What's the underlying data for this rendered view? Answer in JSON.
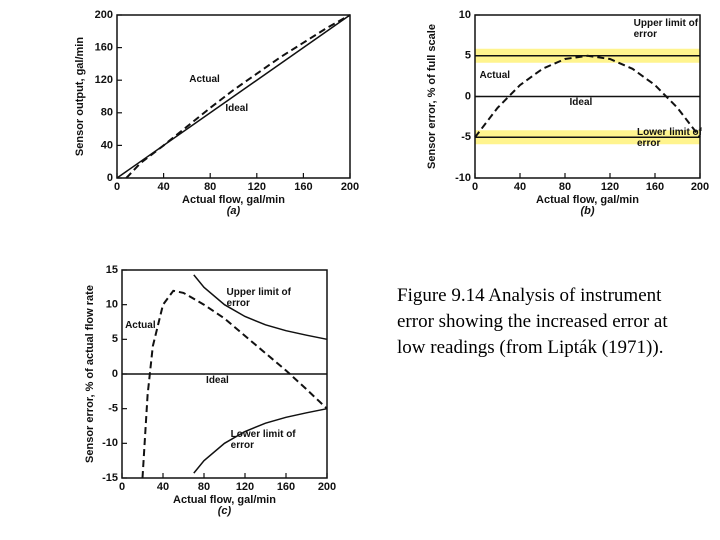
{
  "chart_data": [
    {
      "type": "line",
      "panel": "(a)",
      "xlabel": "Actual flow, gal/min",
      "ylabel": "Sensor output, gal/min",
      "xlim": [
        0,
        200
      ],
      "xticks": [
        0,
        40,
        80,
        120,
        160,
        200
      ],
      "ylim": [
        0,
        200
      ],
      "yticks": [
        0,
        40,
        80,
        120,
        160,
        200
      ],
      "series": [
        {
          "name": "Actual",
          "color": "#111111",
          "dash": true,
          "x": [
            8,
            20,
            40,
            60,
            80,
            100,
            120,
            140,
            160,
            180,
            200
          ],
          "values": [
            0,
            18,
            40,
            63,
            86,
            108,
            128,
            148,
            166,
            184,
            200
          ]
        },
        {
          "name": "Ideal",
          "color": "#111111",
          "dash": false,
          "x": [
            0,
            200
          ],
          "values": [
            0,
            200
          ]
        }
      ]
    },
    {
      "type": "line",
      "panel": "(b)",
      "xlabel": "Actual flow, gal/min",
      "ylabel": "Sensor error, % of full scale",
      "xlim": [
        0,
        200
      ],
      "xticks": [
        0,
        40,
        80,
        120,
        160,
        200
      ],
      "ylim": [
        -10,
        10
      ],
      "yticks": [
        -10,
        -5,
        0,
        5,
        10
      ],
      "series": [
        {
          "name": "Upper limit of error",
          "color": "#111111",
          "dash": false,
          "highlight": "#fff27a",
          "x": [
            0,
            200
          ],
          "values": [
            5,
            5
          ]
        },
        {
          "name": "Actual",
          "color": "#111111",
          "dash": true,
          "x": [
            0,
            20,
            40,
            60,
            80,
            100,
            120,
            140,
            160,
            180,
            200
          ],
          "values": [
            -5,
            -1.4,
            1.4,
            3.4,
            4.6,
            5,
            4.6,
            3.4,
            1.4,
            -1.4,
            -5
          ]
        },
        {
          "name": "Ideal",
          "color": "#111111",
          "dash": false,
          "x": [
            0,
            200
          ],
          "values": [
            0,
            0
          ]
        },
        {
          "name": "Lower limit of error",
          "color": "#111111",
          "dash": false,
          "highlight": "#fff27a",
          "x": [
            0,
            200
          ],
          "values": [
            -5,
            -5
          ]
        }
      ]
    },
    {
      "type": "line",
      "panel": "(c)",
      "xlabel": "Actual flow, gal/min",
      "ylabel": "Sensor error, % of actual flow rate",
      "xlim": [
        0,
        200
      ],
      "xticks": [
        0,
        40,
        80,
        120,
        160,
        200
      ],
      "ylim": [
        -15,
        15
      ],
      "yticks": [
        -15,
        -10,
        -5,
        0,
        5,
        10,
        15
      ],
      "series": [
        {
          "name": "Upper limit of error",
          "color": "#111111",
          "dash": false,
          "x": [
            70,
            80,
            100,
            120,
            140,
            160,
            180,
            200
          ],
          "values": [
            14.3,
            12.5,
            10,
            8.3,
            7.1,
            6.25,
            5.6,
            5
          ]
        },
        {
          "name": "Actual",
          "color": "#111111",
          "dash": true,
          "x": [
            20,
            25,
            30,
            40,
            50,
            60,
            80,
            100,
            120,
            140,
            160,
            180,
            200
          ],
          "values": [
            -15,
            -3,
            4,
            10,
            12,
            11.7,
            10,
            8,
            5.5,
            3,
            0.5,
            -2.2,
            -5
          ]
        },
        {
          "name": "Ideal",
          "color": "#111111",
          "dash": false,
          "x": [
            0,
            200
          ],
          "values": [
            0,
            0
          ]
        },
        {
          "name": "Lower limit of error",
          "color": "#111111",
          "dash": false,
          "x": [
            70,
            80,
            100,
            120,
            140,
            160,
            180,
            200
          ],
          "values": [
            -14.3,
            -12.5,
            -10,
            -8.3,
            -7.1,
            -6.25,
            -5.6,
            -5
          ]
        }
      ]
    }
  ],
  "caption": "Figure 9.14 Analysis of instrument error showing the increased error at low readings (from Lipták (1971))."
}
